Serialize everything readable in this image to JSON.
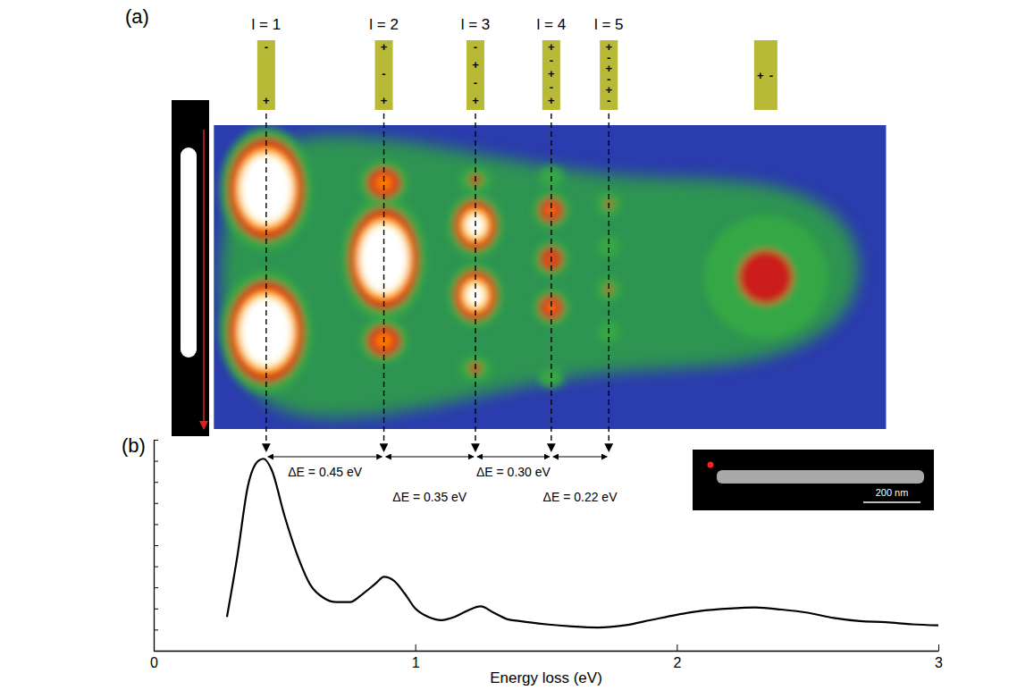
{
  "chart_data": [
    {
      "type": "heatmap",
      "title": "(a)",
      "xlim": [
        0.23,
        2.8
      ],
      "ylim": [
        0,
        1
      ],
      "tick_labels": false,
      "modes": [
        {
          "label": "l = 1",
          "energy": 0.43,
          "charges": [
            "-",
            "+"
          ]
        },
        {
          "label": "l = 2",
          "energy": 0.88,
          "charges": [
            "+",
            "-",
            "+"
          ]
        },
        {
          "label": "l = 3",
          "energy": 1.23,
          "charges": [
            "-",
            "+",
            "-",
            "+"
          ]
        },
        {
          "label": "l = 4",
          "energy": 1.52,
          "charges": [
            "+",
            "-",
            "+",
            "-",
            "+"
          ]
        },
        {
          "label": "l = 5",
          "energy": 1.74,
          "charges": [
            "+",
            "-",
            "+",
            "-",
            "+",
            "-"
          ]
        }
      ],
      "transverse_mode": {
        "energy": 2.34,
        "charges": [
          "+",
          "-"
        ]
      },
      "peaks": {
        "x": [
          0.43,
          0.43,
          0.88,
          0.88,
          0.88,
          1.23,
          1.23,
          1.23,
          1.23,
          1.52,
          1.52,
          1.52,
          1.52,
          1.52,
          1.74,
          1.74,
          1.74,
          1.74,
          2.34
        ],
        "y": [
          0.21,
          0.68,
          0.19,
          0.44,
          0.71,
          0.18,
          0.33,
          0.56,
          0.8,
          0.17,
          0.28,
          0.44,
          0.6,
          0.83,
          0.26,
          0.4,
          0.54,
          0.68,
          0.5
        ],
        "values": [
          3,
          3,
          0.7,
          3,
          0.7,
          0.3,
          1.3,
          1.3,
          0.3,
          0.2,
          0.6,
          0.55,
          0.6,
          0.2,
          0.28,
          0.22,
          0.28,
          0.22,
          0.33
        ],
        "widths": [
          0.065,
          0.065,
          0.045,
          0.06,
          0.045,
          0.04,
          0.045,
          0.045,
          0.04,
          0.035,
          0.035,
          0.035,
          0.035,
          0.035,
          0.03,
          0.03,
          0.03,
          0.03,
          0.14
        ],
        "heights": [
          0.075,
          0.075,
          0.035,
          0.075,
          0.035,
          0.025,
          0.045,
          0.045,
          0.025,
          0.025,
          0.03,
          0.03,
          0.03,
          0.025,
          0.025,
          0.025,
          0.025,
          0.025,
          0.12
        ]
      }
    },
    {
      "type": "line",
      "title": "(b)",
      "x_label": "Energy loss (eV)",
      "xlim": [
        0,
        3
      ],
      "xticks": [
        0,
        1,
        2,
        3
      ],
      "ylim": [
        0,
        1
      ],
      "yticks": [
        0,
        0.1,
        0.2,
        0.3,
        0.4,
        0.5,
        0.6,
        0.7,
        0.8,
        0.9,
        1
      ],
      "tick_labels": "x",
      "color": "#000000",
      "x": [
        0.28,
        0.32,
        0.36,
        0.4,
        0.42,
        0.45,
        0.5,
        0.55,
        0.6,
        0.65,
        0.7,
        0.75,
        0.8,
        0.85,
        0.88,
        0.92,
        0.96,
        1.0,
        1.05,
        1.1,
        1.15,
        1.2,
        1.25,
        1.3,
        1.35,
        1.4,
        1.5,
        1.6,
        1.7,
        1.8,
        1.9,
        2.0,
        2.1,
        2.2,
        2.3,
        2.4,
        2.5,
        2.6,
        2.7,
        2.8,
        2.9,
        3.0
      ],
      "values": [
        0.16,
        0.45,
        0.78,
        0.9,
        0.91,
        0.86,
        0.64,
        0.45,
        0.31,
        0.25,
        0.23,
        0.23,
        0.27,
        0.32,
        0.35,
        0.33,
        0.27,
        0.2,
        0.16,
        0.145,
        0.16,
        0.19,
        0.21,
        0.18,
        0.15,
        0.14,
        0.125,
        0.115,
        0.11,
        0.12,
        0.145,
        0.17,
        0.19,
        0.2,
        0.205,
        0.195,
        0.18,
        0.155,
        0.14,
        0.135,
        0.125,
        0.12
      ],
      "annotations": [
        {
          "text": "ΔE = 0.45 eV",
          "x_start": 0.43,
          "x_end": 0.88
        },
        {
          "text": "ΔE = 0.35 eV",
          "x_start": 0.88,
          "x_end": 1.23
        },
        {
          "text": "ΔE = 0.30 eV",
          "x_start": 1.23,
          "x_end": 1.52
        },
        {
          "text": "ΔE = 0.22 eV",
          "x_start": 1.52,
          "x_end": 1.74
        }
      ],
      "inset": {
        "scale_bar": "200 nm"
      }
    }
  ]
}
